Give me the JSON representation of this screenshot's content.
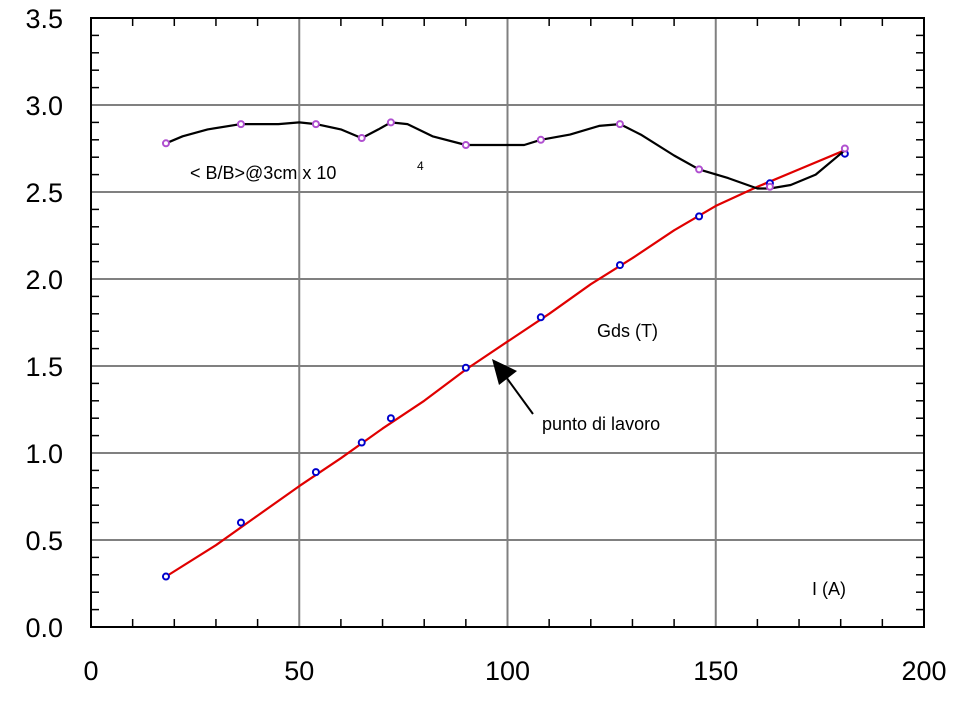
{
  "chart_data": {
    "type": "line",
    "xlim": [
      0,
      200
    ],
    "ylim": [
      0,
      3.5
    ],
    "x_ticks": [
      "0",
      "50",
      "100",
      "150",
      "200"
    ],
    "y_ticks": [
      "0.0",
      "0.5",
      "1.0",
      "1.5",
      "2.0",
      "2.5",
      "3.0",
      "3.5"
    ],
    "grid": true,
    "series": [
      {
        "name": "Gds (T)",
        "line_color": "#e00000",
        "marker_color": "#0000cc",
        "curve": [
          [
            18,
            0.29
          ],
          [
            30,
            0.47
          ],
          [
            40,
            0.64
          ],
          [
            50,
            0.81
          ],
          [
            60,
            0.97
          ],
          [
            70,
            1.14
          ],
          [
            80,
            1.3
          ],
          [
            90,
            1.48
          ],
          [
            100,
            1.64
          ],
          [
            110,
            1.8
          ],
          [
            120,
            1.97
          ],
          [
            130,
            2.12
          ],
          [
            140,
            2.28
          ],
          [
            150,
            2.42
          ],
          [
            160,
            2.53
          ],
          [
            170,
            2.63
          ],
          [
            181,
            2.74
          ]
        ],
        "markers": [
          [
            18,
            0.29
          ],
          [
            36,
            0.6
          ],
          [
            54,
            0.89
          ],
          [
            65,
            1.06
          ],
          [
            72,
            1.2
          ],
          [
            90,
            1.49
          ],
          [
            108,
            1.78
          ],
          [
            127,
            2.08
          ],
          [
            146,
            2.36
          ],
          [
            163,
            2.55
          ],
          [
            181,
            2.72
          ]
        ]
      },
      {
        "name": "< B/B>@3cm x 10",
        "line_color": "#000000",
        "marker_color": "#b050d0",
        "curve": [
          [
            18,
            2.78
          ],
          [
            22,
            2.82
          ],
          [
            28,
            2.86
          ],
          [
            36,
            2.89
          ],
          [
            45,
            2.89
          ],
          [
            50,
            2.9
          ],
          [
            54,
            2.89
          ],
          [
            60,
            2.86
          ],
          [
            65,
            2.81
          ],
          [
            69,
            2.86
          ],
          [
            72,
            2.9
          ],
          [
            76,
            2.89
          ],
          [
            82,
            2.82
          ],
          [
            90,
            2.77
          ],
          [
            98,
            2.77
          ],
          [
            104,
            2.77
          ],
          [
            108,
            2.8
          ],
          [
            115,
            2.83
          ],
          [
            122,
            2.88
          ],
          [
            127,
            2.89
          ],
          [
            132,
            2.83
          ],
          [
            140,
            2.71
          ],
          [
            146,
            2.63
          ],
          [
            153,
            2.58
          ],
          [
            160,
            2.52
          ],
          [
            163,
            2.52
          ],
          [
            168,
            2.54
          ],
          [
            174,
            2.6
          ],
          [
            181,
            2.74
          ]
        ],
        "markers": [
          [
            18,
            2.78
          ],
          [
            36,
            2.89
          ],
          [
            54,
            2.89
          ],
          [
            65,
            2.81
          ],
          [
            72,
            2.9
          ],
          [
            90,
            2.77
          ],
          [
            108,
            2.8
          ],
          [
            127,
            2.89
          ],
          [
            146,
            2.63
          ],
          [
            163,
            2.53
          ],
          [
            181,
            2.75
          ]
        ]
      }
    ],
    "annotations": {
      "ripple_label": "< B/B>@3cm x 10",
      "ripple_superscript": "4",
      "gds_label": "Gds (T)",
      "arrow_label": "punto di lavoro",
      "arrow_target": [
        96,
        1.56
      ],
      "axis_unit": "I (A)"
    }
  }
}
